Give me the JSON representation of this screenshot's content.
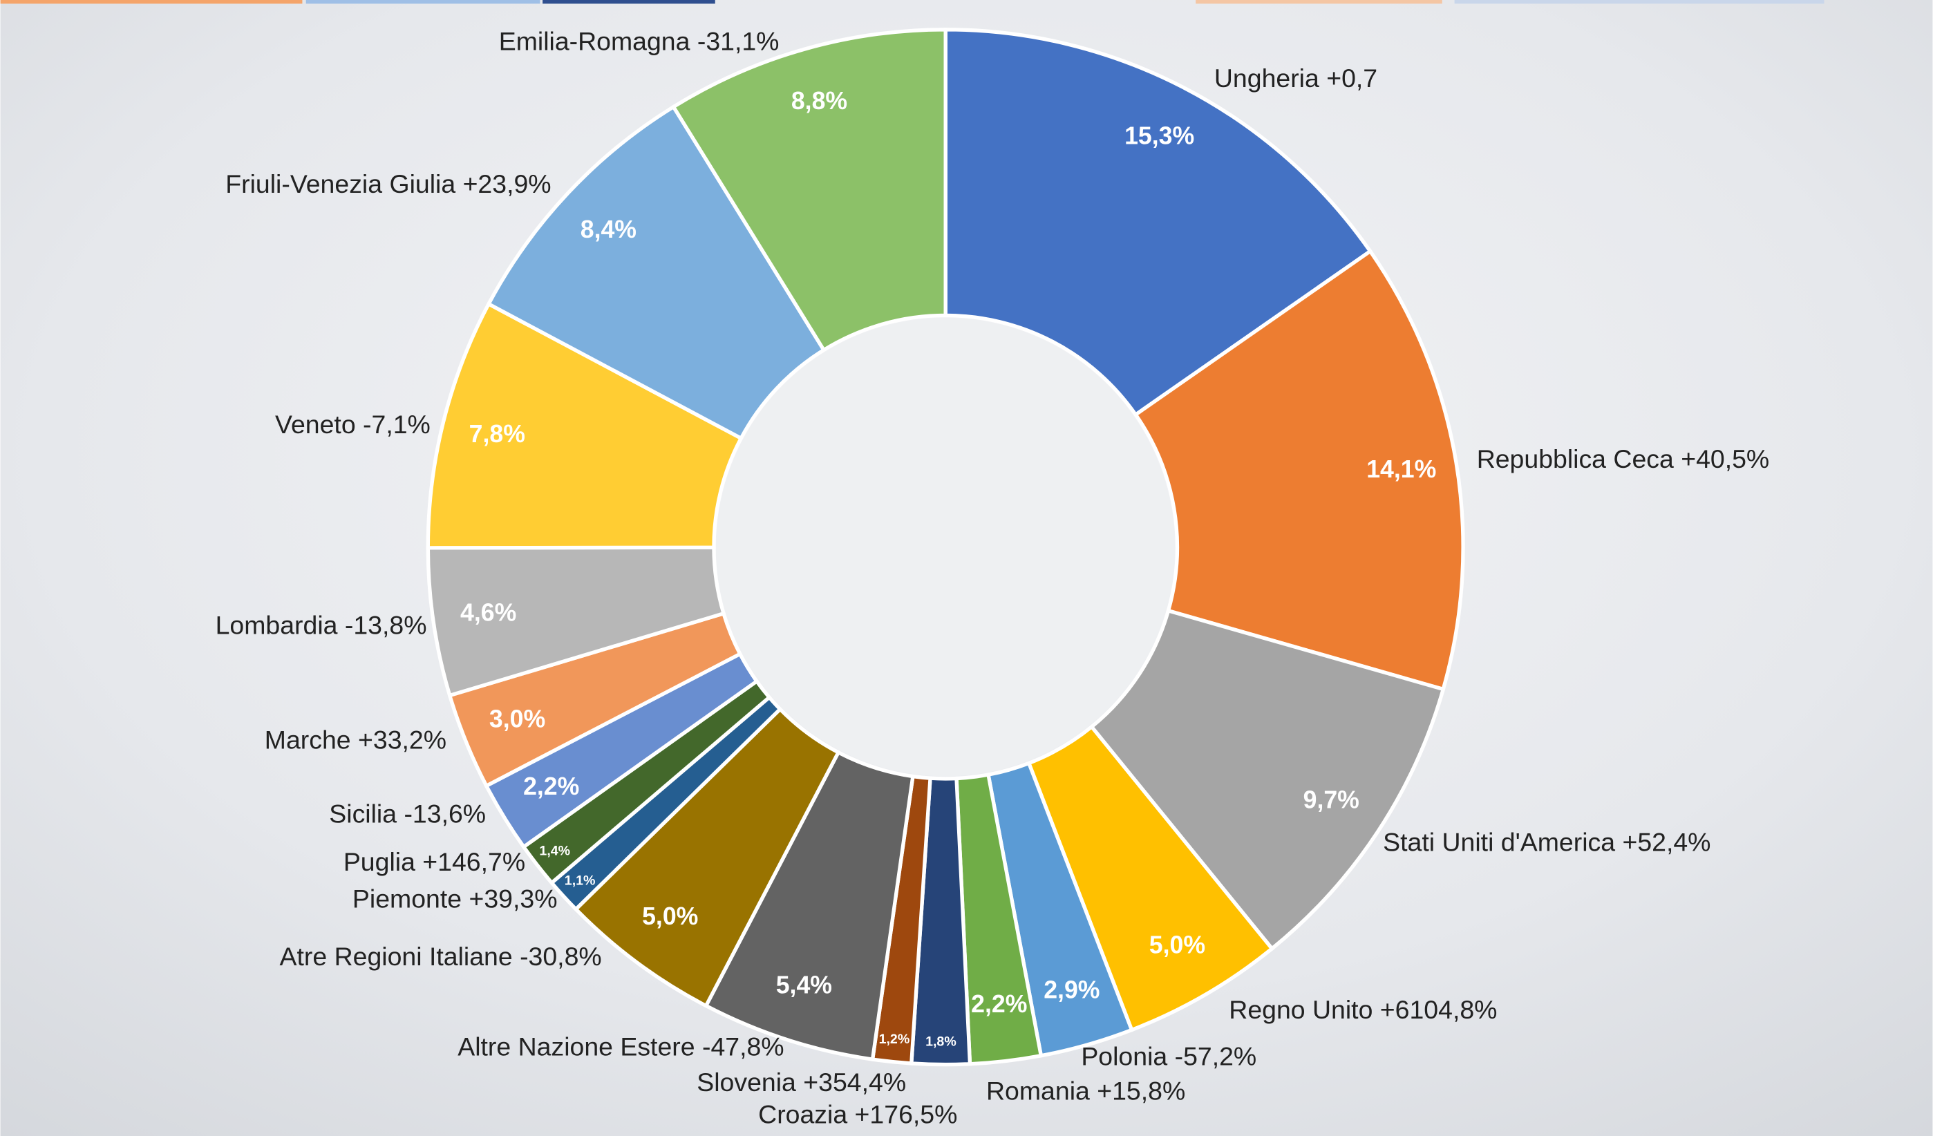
{
  "chart_data": {
    "type": "donut",
    "categories": [
      "Ungheria +0,7",
      "Repubblica Ceca +40,5%",
      "Stati Uniti d'America +52,4%",
      "Regno Unito +6104,8%",
      "Polonia -57,2%",
      "Romania +15,8%",
      "Croazia +176,5%",
      "Slovenia +354,4%",
      "Altre Nazione Estere -47,8%",
      "Atre Regioni Italiane -30,8%",
      "Piemonte +39,3%",
      "Puglia +146,7%",
      "Sicilia -13,6%",
      "Marche +33,2%",
      "Lombardia -13,8%",
      "Veneto -7,1%",
      "Friuli-Venezia Giulia +23,9%",
      "Emilia-Romagna -31,1%"
    ],
    "values": [
      15.3,
      14.1,
      9.7,
      5.0,
      2.9,
      2.2,
      1.8,
      1.2,
      5.4,
      5.0,
      1.1,
      1.4,
      2.2,
      3.0,
      4.6,
      7.8,
      8.4,
      8.8
    ],
    "value_labels": [
      "15,3%",
      "14,1%",
      "9,7%",
      "5,0%",
      "2,9%",
      "2,2%",
      "1,8%",
      "1,2%",
      "5,4%",
      "5,0%",
      "1,1%",
      "1,4%",
      "2,2%",
      "3,0%",
      "4,6%",
      "7,8%",
      "8,4%",
      "8,8%"
    ],
    "colors": [
      "#4472c4",
      "#ed7d31",
      "#a5a5a5",
      "#ffc000",
      "#5b9bd5",
      "#70ad47",
      "#264478",
      "#9e480e",
      "#636363",
      "#997300",
      "#255e91",
      "#43682b",
      "#698ed0",
      "#f1975a",
      "#b7b7b7",
      "#ffcd33",
      "#7cafdd",
      "#8cc168"
    ]
  }
}
